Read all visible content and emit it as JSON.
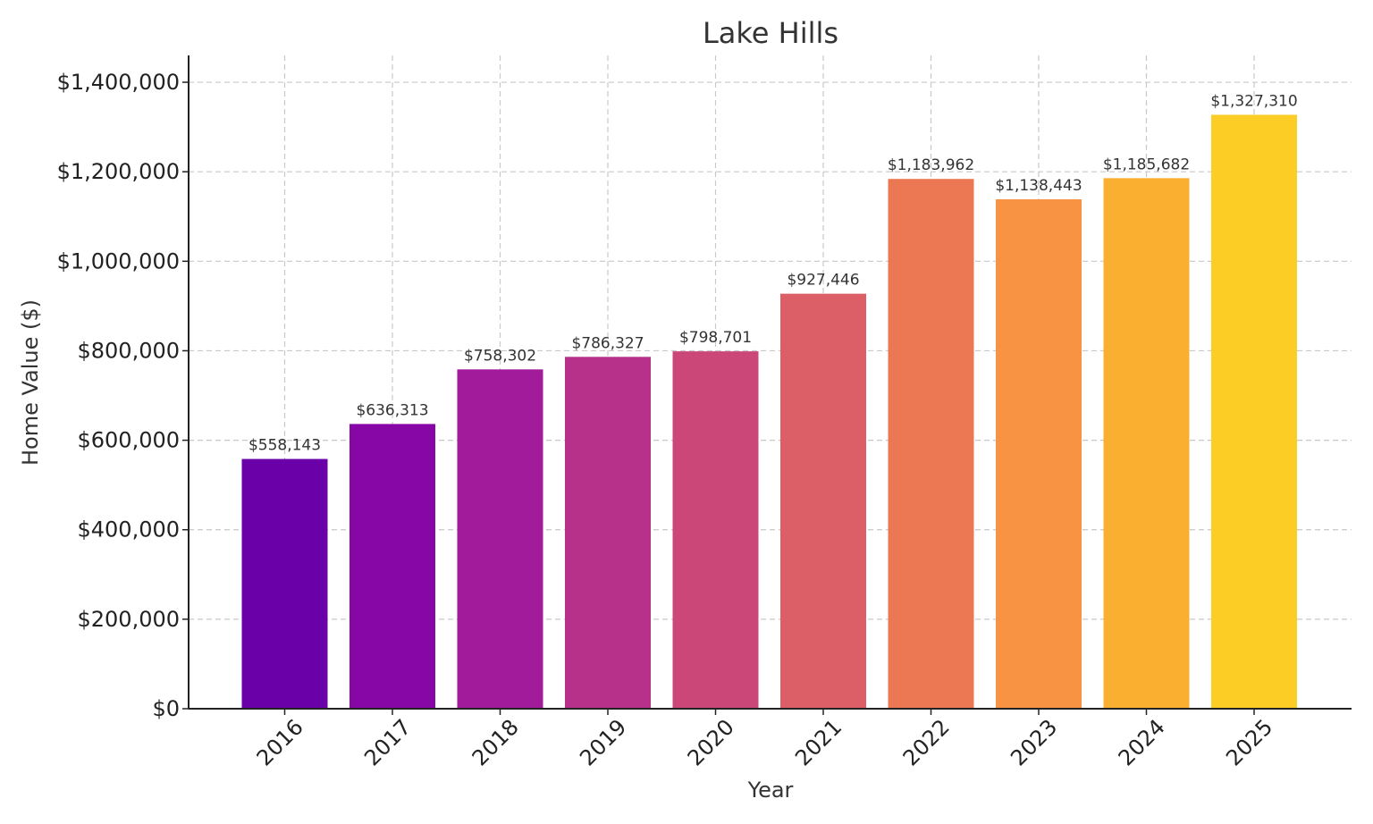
{
  "chart_data": {
    "type": "bar",
    "title": "Lake Hills",
    "xlabel": "Year",
    "ylabel": "Home Value ($)",
    "categories": [
      "2016",
      "2017",
      "2018",
      "2019",
      "2020",
      "2021",
      "2022",
      "2023",
      "2024",
      "2025"
    ],
    "values": [
      558143,
      636313,
      758302,
      786327,
      798701,
      927446,
      1183962,
      1138443,
      1185682,
      1327310
    ],
    "value_labels": [
      "$558,143",
      "$636,313",
      "$758,302",
      "$786,327",
      "$798,701",
      "$927,446",
      "$1,183,962",
      "$1,138,443",
      "$1,185,682",
      "$1,327,310"
    ],
    "bar_colors": [
      "#6a00a8",
      "#8606a6",
      "#a11b9b",
      "#b7318a",
      "#cb4778",
      "#dc5e66",
      "#ec7853",
      "#f79342",
      "#fbaf31",
      "#fccd25"
    ],
    "ylim": [
      0,
      1460000
    ],
    "yticks": [
      0,
      200000,
      400000,
      600000,
      800000,
      1000000,
      1200000,
      1400000
    ],
    "ytick_labels": [
      "$0",
      "$200,000",
      "$400,000",
      "$600,000",
      "$800,000",
      "$1,000,000",
      "$1,200,000",
      "$1,400,000"
    ],
    "grid": true,
    "legend": "none"
  }
}
